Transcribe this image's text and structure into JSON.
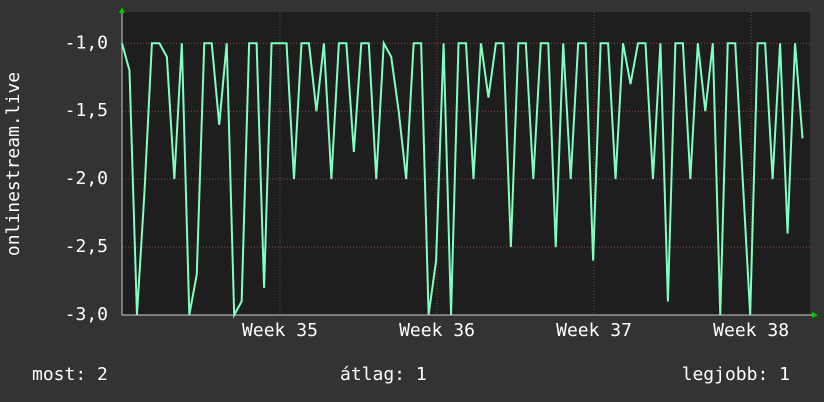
{
  "chart_data": {
    "type": "line",
    "y_label": "onlinestream.live",
    "x": [
      0,
      8,
      16,
      24,
      32,
      40,
      48,
      56,
      64,
      72,
      80,
      88,
      96,
      104,
      112,
      120,
      128,
      136,
      144,
      152,
      160,
      168,
      176,
      184,
      192,
      200,
      208,
      216,
      224,
      232,
      240,
      248,
      256,
      264,
      272,
      280,
      288,
      296,
      304,
      312,
      320,
      328,
      336,
      344,
      352,
      360,
      368,
      376,
      384,
      392,
      400,
      408,
      416,
      424,
      432,
      440,
      448,
      456,
      464,
      472,
      480,
      488,
      496,
      504,
      512,
      520,
      528,
      536,
      544,
      552,
      560,
      568,
      576,
      584,
      592,
      600,
      608,
      616,
      624,
      632,
      640,
      648,
      656,
      664,
      672,
      680,
      688,
      696,
      704,
      712,
      720,
      728
    ],
    "series": [
      {
        "name": "onlinestream.live",
        "color": "#80ffc0",
        "values": [
          -1,
          -1.2,
          -3,
          -2.1,
          -1,
          -1,
          -1.1,
          -2,
          -1,
          -3,
          -2.7,
          -1,
          -1,
          -1.6,
          -1,
          -3,
          -2.9,
          -1,
          -1,
          -2.8,
          -1,
          -1,
          -1,
          -2,
          -1,
          -1,
          -1.5,
          -1,
          -2,
          -1,
          -1,
          -1.8,
          -1,
          -1,
          -2,
          -1,
          -1.1,
          -1.5,
          -2,
          -1,
          -1,
          -3,
          -2.6,
          -1,
          -3,
          -1,
          -1,
          -2,
          -1,
          -1.4,
          -1,
          -1,
          -2.5,
          -1,
          -1,
          -2,
          -1,
          -1,
          -2.5,
          -1,
          -2,
          -1,
          -1,
          -2.6,
          -1,
          -1,
          -2,
          -1,
          -1.3,
          -1,
          -1,
          -2,
          -1,
          -2.9,
          -1,
          -1,
          -2,
          -1,
          -1.5,
          -1,
          -3,
          -1,
          -1,
          -2,
          -3,
          -1,
          -1,
          -2,
          -1,
          -2.4,
          -1,
          -1.7
        ]
      }
    ],
    "xlim": [
      0,
      736
    ],
    "xticks": [
      {
        "value": 169,
        "label": "Week 35"
      },
      {
        "value": 337,
        "label": "Week 36"
      },
      {
        "value": 505,
        "label": "Week 37"
      },
      {
        "value": 673,
        "label": "Week 38"
      }
    ],
    "ylim": [
      -3,
      -0.77
    ],
    "yticks": [
      {
        "value": -3,
        "label": "-3,0"
      },
      {
        "value": -2.5,
        "label": "-2,5"
      },
      {
        "value": -2,
        "label": "-2,0"
      },
      {
        "value": -1.5,
        "label": "-1,5"
      },
      {
        "value": -1,
        "label": "-1,0"
      }
    ],
    "grid": true,
    "footer": {
      "current": "most: 2",
      "average": "átlag: 1",
      "best": "legjobb: 1"
    }
  }
}
